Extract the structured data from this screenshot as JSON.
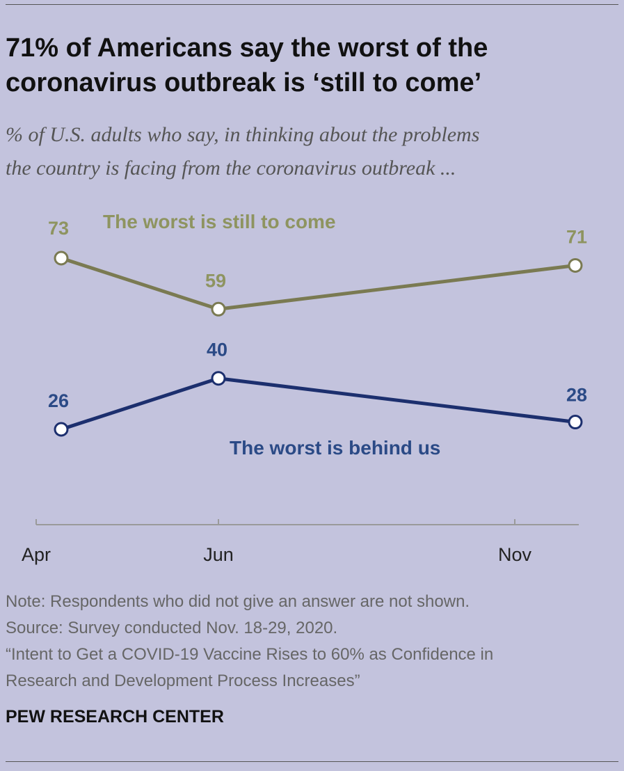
{
  "title_line1": "71% of Americans say the worst of the",
  "title_line2": "coronavirus outbreak is ‘still to come’",
  "subtitle_line1": "% of U.S. adults who say, in thinking about the problems",
  "subtitle_line2": "the country is facing from the coronavirus outbreak ...",
  "notes": {
    "note": "Note: Respondents who did not give an answer are not shown.",
    "source": "Source: Survey conducted Nov. 18-29, 2020.",
    "report_line1": "“Intent to Get a COVID-19 Vaccine Rises to 60% as Confidence in",
    "report_line2": "Research and Development Process Increases”"
  },
  "brand": "PEW RESEARCH CENTER",
  "colors": {
    "still_to_come": "#7a7a52",
    "still_to_come_label": "#8e9460",
    "behind_us": "#1c2f6e",
    "behind_us_label": "#2b4a86",
    "axis": "#9a9a9a"
  },
  "chart_data": {
    "type": "line",
    "x": [
      "Apr",
      "Jun",
      "Nov"
    ],
    "series": [
      {
        "name": "The worst is still to come",
        "values": [
          73,
          59,
          71
        ]
      },
      {
        "name": "The worst is behind us",
        "values": [
          26,
          40,
          28
        ]
      }
    ],
    "ylim": [
      0,
      100
    ],
    "grid": false,
    "legend": "inline labels"
  }
}
